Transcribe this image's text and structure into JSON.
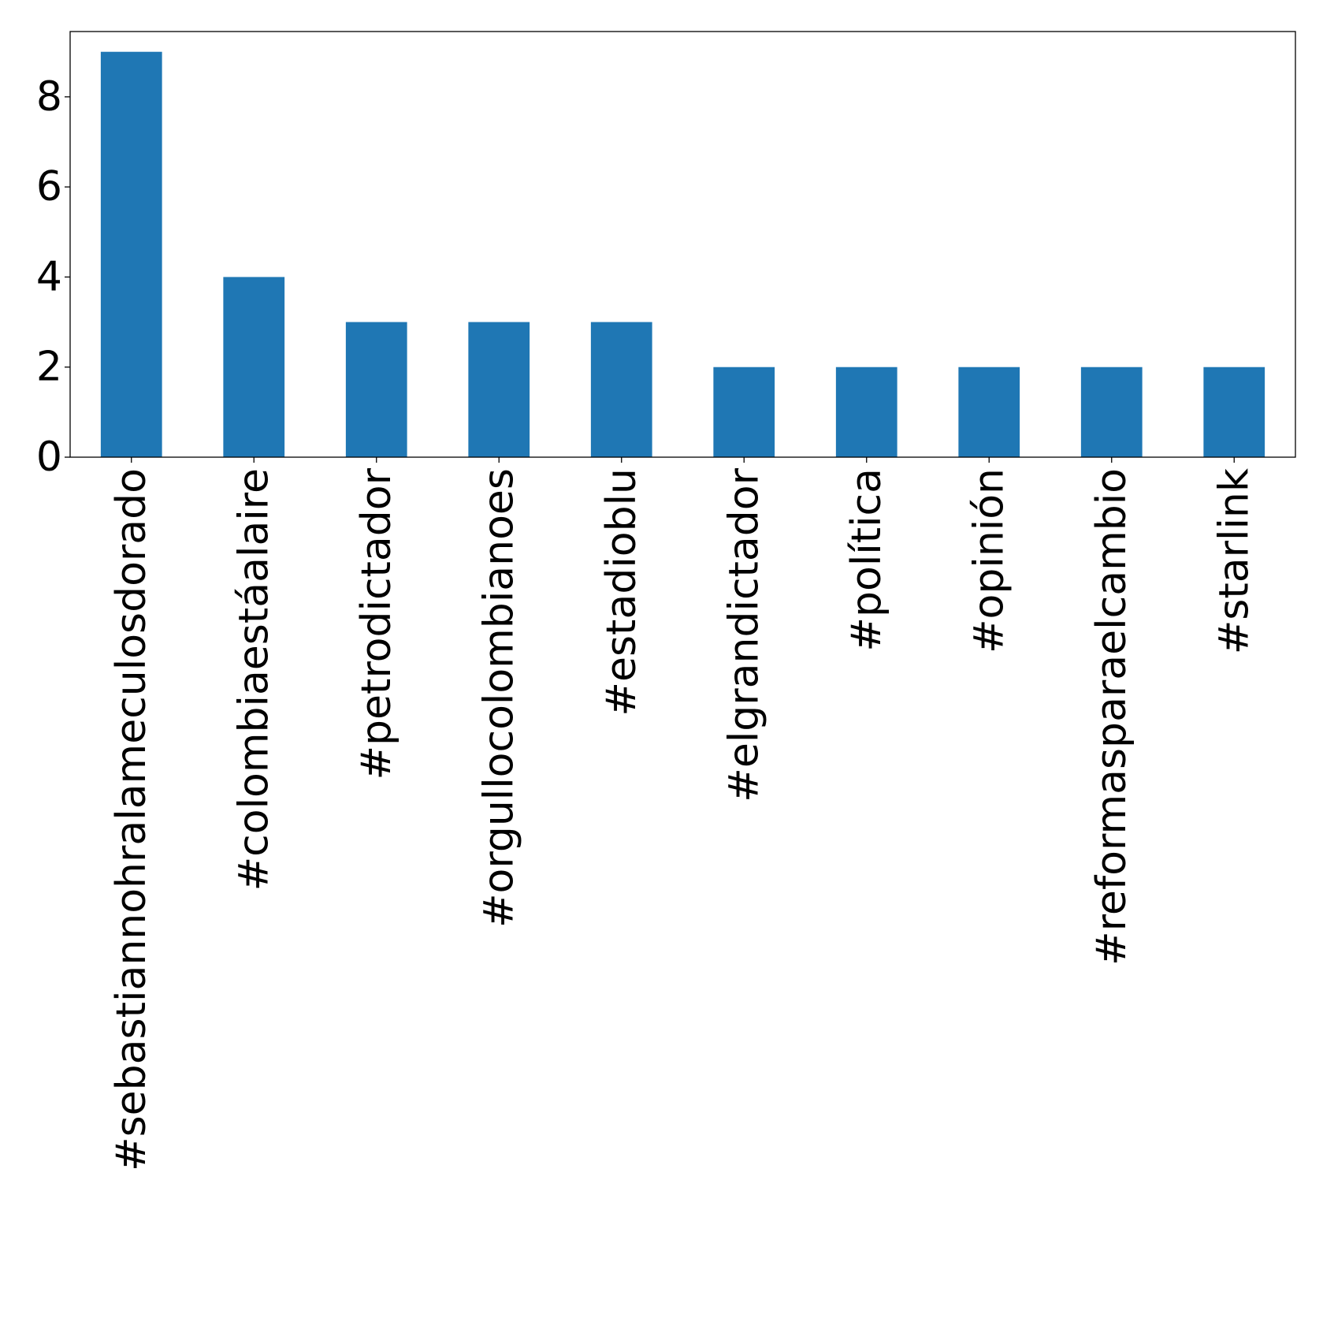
{
  "chart_data": {
    "type": "bar",
    "title": "",
    "xlabel": "",
    "ylabel": "",
    "categories": [
      "#sebastiannohralameculosdorado",
      "#colombiaestáalaire",
      "#petrodictador",
      "#orgullocolombianoes",
      "#estadioblu",
      "#elgrandictador",
      "#política",
      "#opinión",
      "#reformasparaelcambio",
      "#starlink"
    ],
    "values": [
      9,
      4,
      3,
      3,
      3,
      2,
      2,
      2,
      2,
      2
    ],
    "ylim": [
      0,
      9.45
    ],
    "yticks": [
      0,
      2,
      4,
      6,
      8
    ],
    "grid": false,
    "legend": "none",
    "bar_color": "#1f77b4"
  }
}
